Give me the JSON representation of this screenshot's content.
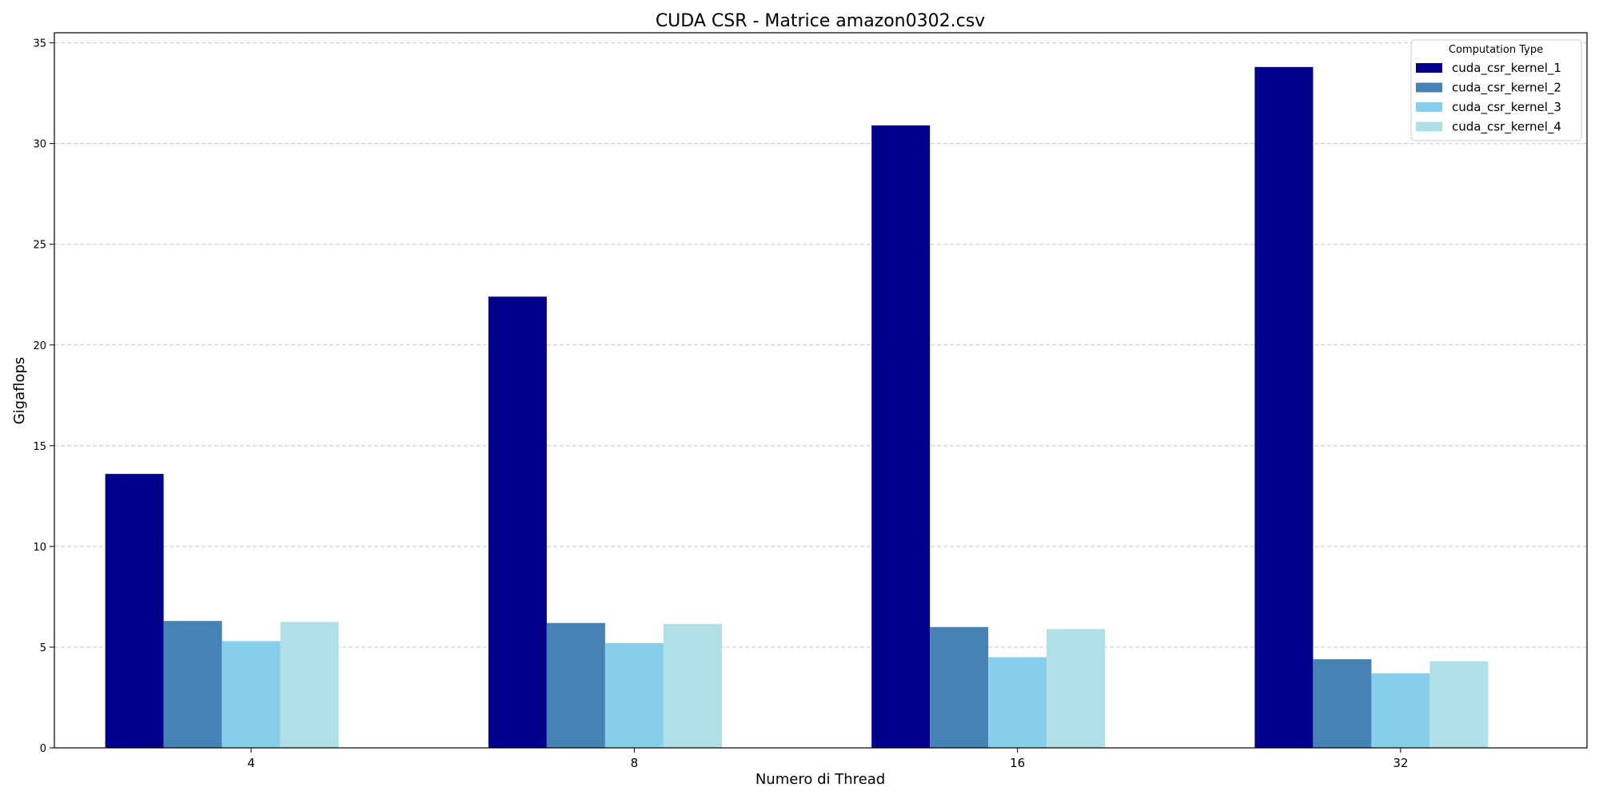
{
  "chart_data": {
    "type": "bar",
    "title": "CUDA CSR - Matrice amazon0302.csv",
    "xlabel": "Numero di Thread",
    "ylabel": "Gigaflops",
    "categories": [
      "4",
      "8",
      "16",
      "32"
    ],
    "ylim": [
      0,
      35.5
    ],
    "yticks": [
      0,
      5,
      10,
      15,
      20,
      25,
      30,
      35
    ],
    "grid": true,
    "legend_title": "Computation Type",
    "legend_position": "top-right",
    "series": [
      {
        "name": "cuda_csr_kernel_1",
        "color": "#00008b",
        "values": [
          13.6,
          22.4,
          30.9,
          33.8
        ]
      },
      {
        "name": "cuda_csr_kernel_2",
        "color": "#4682b4",
        "values": [
          6.3,
          6.2,
          6.0,
          4.4
        ]
      },
      {
        "name": "cuda_csr_kernel_3",
        "color": "#87ceeb",
        "values": [
          5.3,
          5.2,
          4.5,
          3.7
        ]
      },
      {
        "name": "cuda_csr_kernel_4",
        "color": "#b0e0e6",
        "values": [
          6.25,
          6.15,
          5.9,
          4.3
        ]
      }
    ]
  }
}
